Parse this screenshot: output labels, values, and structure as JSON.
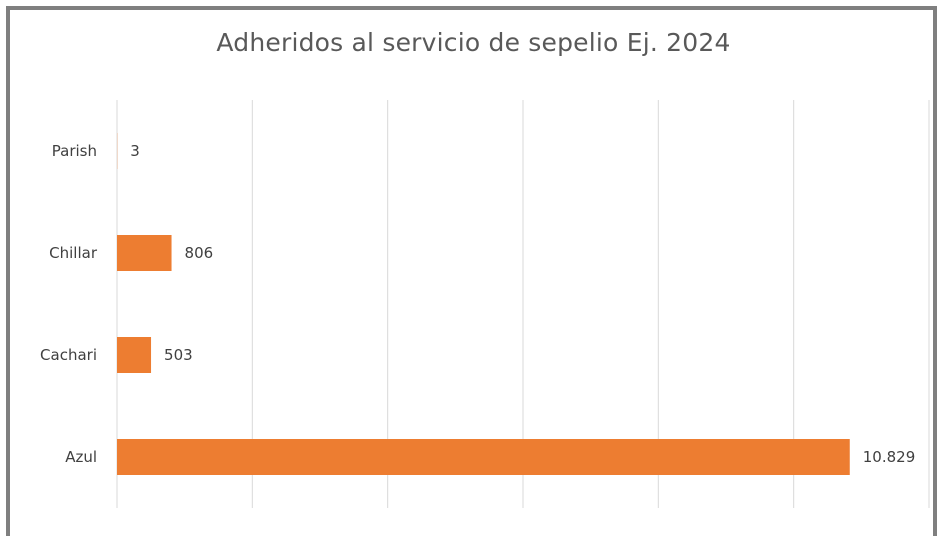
{
  "chart_data": {
    "type": "bar",
    "orientation": "horizontal",
    "title": "Adheridos al servicio de sepelio Ej. 2024",
    "categories": [
      "Parish",
      "Chillar",
      "Cachari",
      "Azul"
    ],
    "values": [
      3,
      806,
      503,
      10829
    ],
    "data_labels": [
      "3",
      "806",
      "503",
      "10.829"
    ],
    "xlim": [
      0,
      12000
    ],
    "grid": true,
    "bar_color": "#ED7D31",
    "grid_color": "#D9D9D9"
  }
}
